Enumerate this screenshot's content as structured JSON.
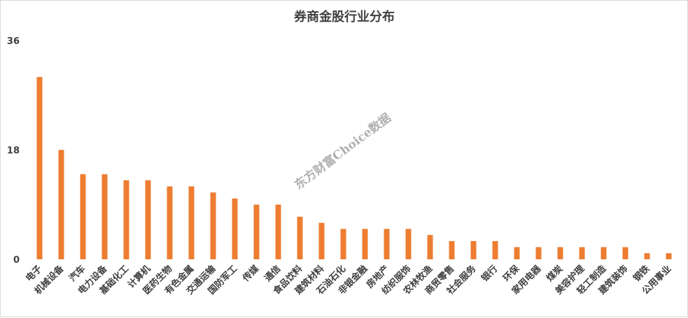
{
  "chart_data": {
    "type": "bar",
    "title": "券商金股行业分布",
    "categories": [
      "电子",
      "机械设备",
      "汽车",
      "电力设备",
      "基础化工",
      "计算机",
      "医药生物",
      "有色金属",
      "交通运输",
      "国防军工",
      "传媒",
      "通信",
      "食品饮料",
      "建筑材料",
      "石油石化",
      "非银金融",
      "房地产",
      "纺织服饰",
      "农林牧渔",
      "商贸零售",
      "社会服务",
      "银行",
      "环保",
      "家用电器",
      "煤炭",
      "美容护理",
      "轻工制造",
      "建筑装饰",
      "钢铁",
      "公用事业"
    ],
    "values": [
      30,
      18,
      14,
      14,
      13,
      13,
      12,
      12,
      11,
      10,
      9,
      9,
      7,
      6,
      5,
      5,
      5,
      5,
      4,
      3,
      3,
      3,
      2,
      2,
      2,
      2,
      2,
      2,
      1,
      1
    ],
    "yticks": [
      0,
      18,
      36
    ],
    "ylim": [
      0,
      36
    ],
    "xlabel": "",
    "ylabel": "",
    "grid": false,
    "bar_color": "#ED7D31"
  },
  "watermark": "东方财富Choice数据"
}
